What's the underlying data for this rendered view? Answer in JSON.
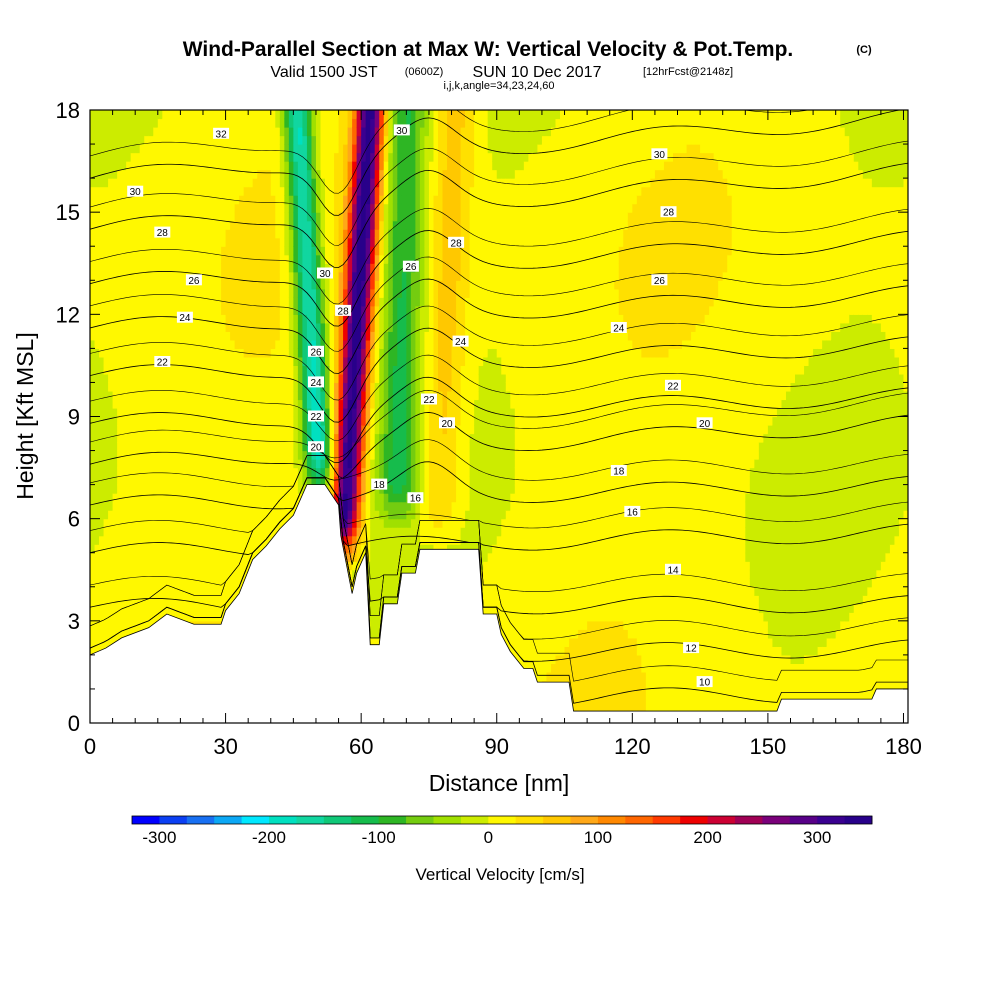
{
  "header": {
    "title": "Wind-Parallel Section at Max W: Vertical Velocity & Pot.Temp.",
    "copyright": "(C)",
    "valid_prefix": "Valid 1500 JST",
    "valid_utc": "(0600Z)",
    "valid_date": "SUN 10 Dec 2017",
    "forecast": "[12hrFcst@2148z]",
    "indices": "i,j,k,angle=34,23,24,60"
  },
  "chart_data": {
    "type": "heatmap",
    "xlabel": "Distance [nm]",
    "ylabel": "Height [Kft MSL]",
    "xlim": [
      0,
      181
    ],
    "ylim": [
      0,
      18
    ],
    "x_ticks": [
      0,
      30,
      60,
      90,
      120,
      150,
      180
    ],
    "y_ticks": [
      0,
      3,
      6,
      9,
      12,
      15,
      18
    ],
    "grid": false,
    "background_field": "Vertical Velocity [cm/s]",
    "w_field": {
      "baseline_cm_s": 10,
      "features": [
        {
          "kind": "downdraft",
          "tilt_x": [
            51,
            46
          ],
          "z_range": [
            6.8,
            18
          ],
          "peak_cm_s": -200
        },
        {
          "kind": "updraft",
          "tilt_x": [
            56,
            62
          ],
          "z_range": [
            5.0,
            18
          ],
          "peak_cm_s": 330
        },
        {
          "kind": "downdraft",
          "tilt_x": [
            68,
            70
          ],
          "z_range": [
            6.0,
            18
          ],
          "peak_cm_s": -110
        },
        {
          "kind": "updraft",
          "tilt_x": [
            77,
            81
          ],
          "z_range": [
            5.5,
            18
          ],
          "peak_cm_s": 60
        }
      ]
    },
    "terrain_kft": [
      [
        0,
        2.0
      ],
      [
        3.5,
        2.2
      ],
      [
        7,
        2.5
      ],
      [
        13,
        2.8
      ],
      [
        17,
        3.2
      ],
      [
        23,
        2.9
      ],
      [
        29,
        2.9
      ],
      [
        30,
        3.3
      ],
      [
        33,
        3.8
      ],
      [
        36,
        4.8
      ],
      [
        39,
        5.2
      ],
      [
        42,
        5.7
      ],
      [
        45,
        6.1
      ],
      [
        48,
        7.0
      ],
      [
        52,
        7.0
      ],
      [
        55,
        6.4
      ],
      [
        55.5,
        5.5
      ],
      [
        58,
        3.8
      ],
      [
        59,
        4.4
      ],
      [
        61,
        5.0
      ],
      [
        62,
        2.3
      ],
      [
        64,
        2.3
      ],
      [
        65,
        3.5
      ],
      [
        68,
        3.5
      ],
      [
        69,
        4.4
      ],
      [
        72,
        4.4
      ],
      [
        73,
        5.1
      ],
      [
        86,
        5.1
      ],
      [
        87,
        3.2
      ],
      [
        90,
        3.2
      ],
      [
        91,
        2.6
      ],
      [
        93,
        2.1
      ],
      [
        96,
        1.6
      ],
      [
        98,
        1.6
      ],
      [
        99,
        1.2
      ],
      [
        106,
        1.2
      ],
      [
        107,
        0.35
      ],
      [
        152,
        0.35
      ],
      [
        153,
        0.7
      ],
      [
        173,
        0.7
      ],
      [
        174,
        1.0
      ],
      [
        181,
        1.0
      ]
    ],
    "theta_contours": [
      {
        "value": 10,
        "z_left": 0.5,
        "z_right": 0.9,
        "labels": [
          [
            136,
            1.2
          ]
        ]
      },
      {
        "value": 12,
        "z_left": 1.9,
        "z_right": 2.2,
        "labels": [
          [
            133,
            2.2
          ]
        ]
      },
      {
        "value": 14,
        "z_left": 3.4,
        "z_right": 3.5,
        "labels": [
          [
            129,
            4.5
          ]
        ]
      },
      {
        "value": 16,
        "z_left": 5.0,
        "z_right": 5.6,
        "labels": [
          [
            72,
            6.6
          ],
          [
            120,
            6.2
          ]
        ]
      },
      {
        "value": 18,
        "z_left": 6.4,
        "z_right": 7.0,
        "labels": [
          [
            64,
            7.0
          ],
          [
            117,
            7.4
          ]
        ]
      },
      {
        "value": 20,
        "z_left": 7.6,
        "z_right": 8.8,
        "labels": [
          [
            50,
            8.1
          ],
          [
            79,
            8.8
          ],
          [
            136,
            8.8
          ]
        ]
      },
      {
        "value": 22,
        "z_left": 8.8,
        "z_right": 9.6,
        "labels": [
          [
            16,
            10.6
          ],
          [
            50,
            9.0
          ],
          [
            75,
            9.5
          ],
          [
            129,
            9.9
          ]
        ]
      },
      {
        "value": 24,
        "z_left": 10.2,
        "z_right": 11.1,
        "labels": [
          [
            21,
            11.9
          ],
          [
            50,
            10.0
          ],
          [
            82,
            11.2
          ],
          [
            117,
            11.6
          ]
        ]
      },
      {
        "value": 26,
        "z_left": 11.6,
        "z_right": 12.6,
        "labels": [
          [
            23,
            13.0
          ],
          [
            50,
            10.9
          ],
          [
            71,
            13.4
          ],
          [
            126,
            13.0
          ]
        ]
      },
      {
        "value": 28,
        "z_left": 12.9,
        "z_right": 14.2,
        "labels": [
          [
            16,
            14.4
          ],
          [
            56,
            12.1
          ],
          [
            81,
            14.1
          ],
          [
            128,
            15.0
          ]
        ]
      },
      {
        "value": 30,
        "z_left": 14.5,
        "z_right": 16.2,
        "labels": [
          [
            10,
            15.6
          ],
          [
            52,
            13.2
          ],
          [
            69,
            17.4
          ],
          [
            126,
            16.7
          ]
        ]
      },
      {
        "value": 32,
        "z_left": 16.0,
        "z_right": 17.8,
        "labels": [
          [
            29,
            17.3
          ]
        ]
      }
    ]
  },
  "colorbar": {
    "label": "Vertical Velocity [cm/s]",
    "tick_labels": [
      "-300",
      "-200",
      "-100",
      "0",
      "100",
      "200",
      "300"
    ],
    "tick_values": [
      -300,
      -200,
      -100,
      0,
      100,
      200,
      300
    ],
    "min": -325,
    "max": 350,
    "step": 25,
    "colors": [
      "#0000ff",
      "#0b3ff3",
      "#1870f2",
      "#0ca8f5",
      "#00e8ff",
      "#00e0c0",
      "#11d6a0",
      "#10c878",
      "#16bc4c",
      "#2eb624",
      "#74cc10",
      "#a0e000",
      "#ccec00",
      "#fff800",
      "#ffe000",
      "#ffc800",
      "#ffa818",
      "#ff8800",
      "#ff6600",
      "#ff3a00",
      "#ee0000",
      "#cc0033",
      "#a00055",
      "#7a007a",
      "#580088",
      "#3a0090",
      "#28008a"
    ]
  }
}
